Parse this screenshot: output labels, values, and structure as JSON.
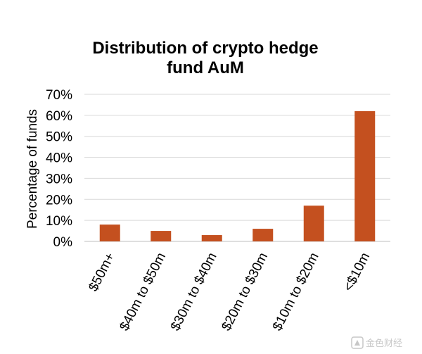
{
  "chart_data": {
    "type": "bar",
    "title": "Distribution of crypto hedge fund AuM",
    "title_lines": [
      "Distribution of crypto hedge",
      "fund AuM"
    ],
    "ylabel": "Percentage of funds",
    "xlabel": "",
    "categories": [
      "$50m+",
      "$40m to $50m",
      "$30m to $40m",
      "$20m to $30m",
      "$10m to $20m",
      "<$10m"
    ],
    "values": [
      8,
      5,
      3,
      6,
      17,
      62
    ],
    "ylim": [
      0,
      70
    ],
    "yticks": [
      0,
      10,
      20,
      30,
      40,
      50,
      60,
      70
    ],
    "ytick_labels": [
      "0%",
      "10%",
      "20%",
      "30%",
      "40%",
      "50%",
      "60%",
      "70%"
    ],
    "grid": true,
    "bar_color": "#C4501F",
    "grid_color": "#D9D9D9"
  },
  "watermark": {
    "text": "金色财经"
  }
}
